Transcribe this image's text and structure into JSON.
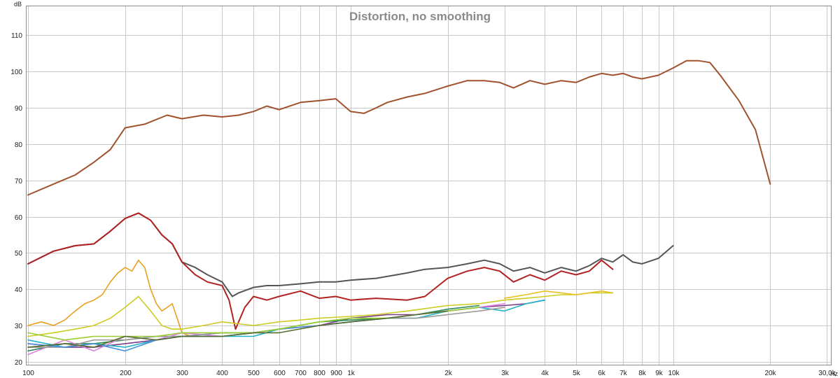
{
  "chart_data": {
    "type": "line",
    "title": "Distortion, no smoothing",
    "y_unit": "dB",
    "x_unit": "Hz",
    "x_scale": "log",
    "xlim": [
      99,
      31000
    ],
    "ylim": [
      19,
      118
    ],
    "grid": true,
    "y_ticks": [
      20,
      30,
      40,
      50,
      60,
      70,
      80,
      90,
      100,
      110
    ],
    "x_ticks": [
      {
        "value": 100,
        "label": "100"
      },
      {
        "value": 200,
        "label": "200"
      },
      {
        "value": 300,
        "label": "300"
      },
      {
        "value": 400,
        "label": "400"
      },
      {
        "value": 500,
        "label": "500"
      },
      {
        "value": 600,
        "label": "600"
      },
      {
        "value": 700,
        "label": "700"
      },
      {
        "value": 800,
        "label": "800"
      },
      {
        "value": 900,
        "label": "900"
      },
      {
        "value": 1000,
        "label": "1k"
      },
      {
        "value": 2000,
        "label": "2k"
      },
      {
        "value": 3000,
        "label": "3k"
      },
      {
        "value": 4000,
        "label": "4k"
      },
      {
        "value": 5000,
        "label": "5k"
      },
      {
        "value": 6000,
        "label": "6k"
      },
      {
        "value": 7000,
        "label": "7k"
      },
      {
        "value": 8000,
        "label": "8k"
      },
      {
        "value": 9000,
        "label": "9k"
      },
      {
        "value": 10000,
        "label": "10k"
      },
      {
        "value": 20000,
        "label": "20k"
      },
      {
        "value": 30000,
        "label": "30,0k"
      }
    ],
    "series": [
      {
        "color": "#a0522d",
        "x": [
          100,
          120,
          140,
          160,
          180,
          200,
          230,
          270,
          300,
          350,
          400,
          450,
          500,
          550,
          600,
          700,
          800,
          900,
          1000,
          1100,
          1200,
          1300,
          1500,
          1700,
          2000,
          2300,
          2600,
          2900,
          3200,
          3600,
          4000,
          4500,
          5000,
          5500,
          6000,
          6500,
          7000,
          7500,
          8000,
          9000,
          10000,
          11000,
          12000,
          13000,
          14000,
          16000,
          18000,
          20000
        ],
        "y": [
          66,
          69,
          71.5,
          75,
          78.5,
          84.5,
          85.5,
          88,
          87,
          88,
          87.5,
          88,
          89,
          90.5,
          89.5,
          91.5,
          92,
          92.5,
          89,
          88.5,
          90,
          91.5,
          93,
          94,
          96,
          97.5,
          97.5,
          97,
          95.5,
          97.5,
          96.5,
          97.5,
          97,
          98.5,
          99.5,
          99,
          99.5,
          98.5,
          98,
          99,
          101,
          103,
          103,
          102.5,
          99,
          92,
          84,
          69
        ]
      },
      {
        "color": "#555555",
        "x": [
          100,
          120,
          140,
          160,
          180,
          200,
          220,
          240,
          260,
          280,
          300,
          330,
          360,
          400,
          430,
          450,
          500,
          550,
          600,
          700,
          800,
          900,
          1000,
          1200,
          1500,
          1700,
          2000,
          2300,
          2600,
          2900,
          3200,
          3600,
          4000,
          4500,
          5000,
          5500,
          6000,
          6500,
          7000,
          7500,
          8000,
          9000,
          10000
        ],
        "y": [
          47,
          50.5,
          52,
          52.5,
          56,
          59.5,
          61,
          59,
          55,
          52.5,
          47.5,
          46,
          44,
          42,
          38,
          39,
          40.5,
          41,
          41,
          41.5,
          42,
          42,
          42.5,
          43,
          44.5,
          45.5,
          46,
          47,
          48,
          47,
          45,
          46,
          44.5,
          46,
          45,
          46.5,
          48.5,
          47.5,
          49.5,
          47.5,
          47,
          48.5,
          52
        ]
      },
      {
        "color": "#b22222",
        "x": [
          100,
          120,
          140,
          160,
          180,
          200,
          220,
          240,
          260,
          280,
          300,
          330,
          360,
          400,
          420,
          440,
          470,
          500,
          550,
          600,
          700,
          800,
          900,
          1000,
          1200,
          1500,
          1700,
          2000,
          2300,
          2600,
          2900,
          3200,
          3600,
          4000,
          4500,
          5000,
          5500,
          6000,
          6500
        ],
        "y": [
          47,
          50.5,
          52,
          52.5,
          56,
          59.5,
          61,
          59,
          55,
          52.5,
          47.5,
          44,
          42,
          41,
          37,
          29,
          35,
          38,
          37,
          38,
          39.5,
          37.5,
          38,
          37,
          37.5,
          37,
          38,
          43,
          45,
          46,
          45,
          42,
          44,
          42.5,
          45,
          44,
          45,
          48,
          45.5
        ]
      },
      {
        "color": "#e8a020",
        "x": [
          100,
          110,
          120,
          130,
          140,
          150,
          160,
          170,
          180,
          190,
          200,
          210,
          220,
          230,
          240,
          250,
          260,
          270,
          280,
          290,
          300,
          320
        ],
        "y": [
          30,
          31,
          30,
          31.5,
          34,
          36,
          37,
          38.5,
          42,
          44.5,
          46,
          45,
          48,
          46,
          40,
          36,
          34,
          35,
          36,
          32,
          28,
          27
        ]
      },
      {
        "color": "#cccc22",
        "x": [
          100,
          120,
          140,
          160,
          180,
          200,
          220,
          240,
          260,
          280,
          300,
          350,
          400,
          500,
          600,
          700,
          800,
          1000,
          1200,
          1500,
          2000,
          2500,
          3000,
          3500,
          4000,
          4500,
          5000,
          5500,
          6000,
          6500
        ],
        "y": [
          27,
          28,
          29,
          30,
          32,
          35,
          38,
          34,
          30,
          29,
          29,
          30,
          31,
          30,
          31,
          31.5,
          32,
          32.5,
          33,
          34,
          35.5,
          36,
          37,
          37.5,
          38,
          38.5,
          38.5,
          39,
          39,
          39
        ]
      },
      {
        "color": "#e8c020",
        "x": [
          3000,
          3500,
          4000,
          4500,
          5000,
          5500,
          6000,
          6500
        ],
        "y": [
          37.5,
          38.5,
          39.5,
          39,
          38.5,
          39,
          39.5,
          39
        ]
      },
      {
        "color": "#7e3c8c",
        "x": [
          100,
          130,
          160,
          200,
          250,
          300,
          400,
          500,
          600,
          800,
          1000,
          1300,
          1600,
          2000,
          2500,
          3000,
          3500,
          4000
        ],
        "y": [
          25,
          24,
          24,
          25,
          26,
          27,
          27,
          28,
          29,
          30,
          32,
          33,
          33,
          34,
          35,
          35.5,
          36,
          37
        ]
      },
      {
        "color": "#2e8b57",
        "x": [
          100,
          130,
          160,
          200,
          250,
          300,
          400,
          500,
          600,
          800,
          1000,
          1300,
          1600,
          2000,
          2500
        ],
        "y": [
          23,
          25,
          25,
          26,
          27,
          27,
          28,
          28,
          29,
          31,
          31.5,
          32,
          33,
          34.5,
          35.5
        ]
      },
      {
        "color": "#20b2c8",
        "x": [
          100,
          130,
          160,
          200,
          250,
          300,
          400,
          500,
          600,
          800,
          1000,
          1300,
          1600,
          2000,
          2500,
          3000,
          3500,
          4000
        ],
        "y": [
          26,
          24,
          25,
          24,
          26,
          27,
          27,
          27,
          29,
          30,
          31,
          32,
          32,
          34,
          35,
          34,
          36,
          37
        ]
      },
      {
        "color": "#e080e0",
        "x": [
          100,
          130,
          160,
          200,
          250,
          300,
          400,
          500,
          600,
          800,
          1000,
          1300,
          1600,
          2000,
          2500,
          3000
        ],
        "y": [
          22,
          26,
          23,
          27,
          26,
          28,
          27,
          28,
          29,
          30,
          31,
          32,
          33,
          34,
          35,
          36
        ]
      },
      {
        "color": "#999999",
        "x": [
          100,
          130,
          160,
          200,
          250,
          300,
          400,
          500,
          600,
          800,
          1000,
          1300,
          1600,
          2000,
          2500,
          3000
        ],
        "y": [
          24,
          24,
          26,
          26,
          27,
          27,
          28,
          28,
          29,
          30,
          31,
          32,
          32,
          33,
          34,
          35
        ]
      },
      {
        "color": "#4a90d9",
        "x": [
          100,
          130,
          160,
          200,
          250,
          300,
          400,
          500,
          600,
          800,
          1000,
          1300,
          1600,
          2000
        ],
        "y": [
          25,
          24,
          25,
          23,
          26,
          27,
          27,
          28,
          29,
          30,
          31,
          32,
          33,
          34
        ]
      },
      {
        "color": "#9acd32",
        "x": [
          100,
          130,
          160,
          200,
          250,
          300,
          400,
          500,
          600,
          800,
          1000,
          1300,
          1600,
          2000,
          2500
        ],
        "y": [
          28,
          26,
          27,
          27,
          27,
          28,
          28,
          28,
          29,
          31,
          32,
          32,
          33,
          34,
          35
        ]
      },
      {
        "color": "#556b2f",
        "x": [
          100,
          130,
          160,
          200,
          250,
          300,
          400,
          500,
          600,
          800,
          1000,
          1300,
          1600,
          2000
        ],
        "y": [
          24,
          25,
          24,
          27,
          26,
          27,
          27,
          28,
          28,
          30,
          31,
          32,
          33,
          34
        ]
      }
    ]
  }
}
